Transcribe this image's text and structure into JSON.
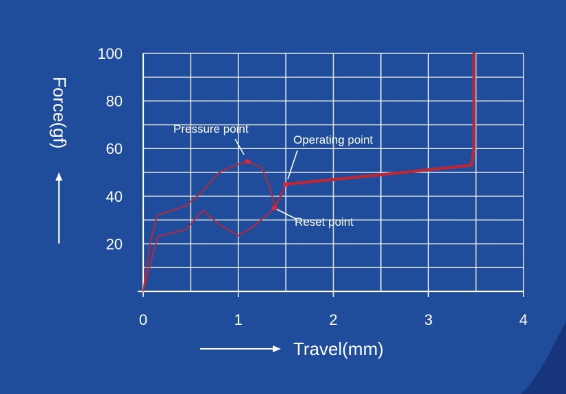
{
  "chart_data": {
    "type": "line",
    "title": "",
    "xlabel": "Travel(mm)",
    "ylabel": "Force(gf)",
    "xlim": [
      0,
      4
    ],
    "ylim": [
      0,
      100
    ],
    "x_ticks": [
      0,
      1,
      2,
      3,
      4
    ],
    "y_ticks": [
      20,
      40,
      60,
      80,
      100
    ],
    "x_tick_labels": [
      "0",
      "1",
      "2",
      "3",
      "4"
    ],
    "y_tick_labels": [
      "20",
      "40",
      "60",
      "80",
      "100"
    ],
    "grid": true,
    "colors": {
      "background": "#1f4d9c",
      "curve": "#b5293a",
      "text": "#ffffff"
    },
    "series": [
      {
        "points": [
          [
            0,
            0
          ],
          [
            0.07,
            20
          ],
          [
            0.15,
            32
          ],
          [
            0.45,
            36
          ],
          [
            0.6,
            41
          ],
          [
            0.8,
            50
          ],
          [
            1.0,
            53.5
          ],
          [
            1.1,
            54.5
          ],
          [
            1.25,
            52
          ],
          [
            1.33,
            44
          ],
          [
            1.38,
            36
          ],
          [
            1.42,
            38
          ],
          [
            1.5,
            45
          ]
        ]
      },
      {
        "points": [
          [
            0,
            0
          ],
          [
            0.15,
            23
          ],
          [
            0.45,
            26
          ],
          [
            0.63,
            34
          ],
          [
            0.8,
            28
          ],
          [
            1.0,
            23.5
          ],
          [
            1.15,
            27
          ],
          [
            1.3,
            32
          ],
          [
            1.38,
            35
          ],
          [
            1.45,
            40
          ],
          [
            1.5,
            45
          ]
        ]
      },
      {
        "points": [
          [
            1.5,
            45
          ],
          [
            2.5,
            49
          ],
          [
            3.45,
            53
          ],
          [
            3.48,
            60
          ],
          [
            3.48,
            100
          ]
        ]
      }
    ],
    "annotations": [
      {
        "label": "Pressure point",
        "x": 1.1,
        "y": 54.5
      },
      {
        "label": "Operating point",
        "x": 1.5,
        "y": 45
      },
      {
        "label": "Reset point",
        "x": 1.38,
        "y": 35
      }
    ]
  }
}
